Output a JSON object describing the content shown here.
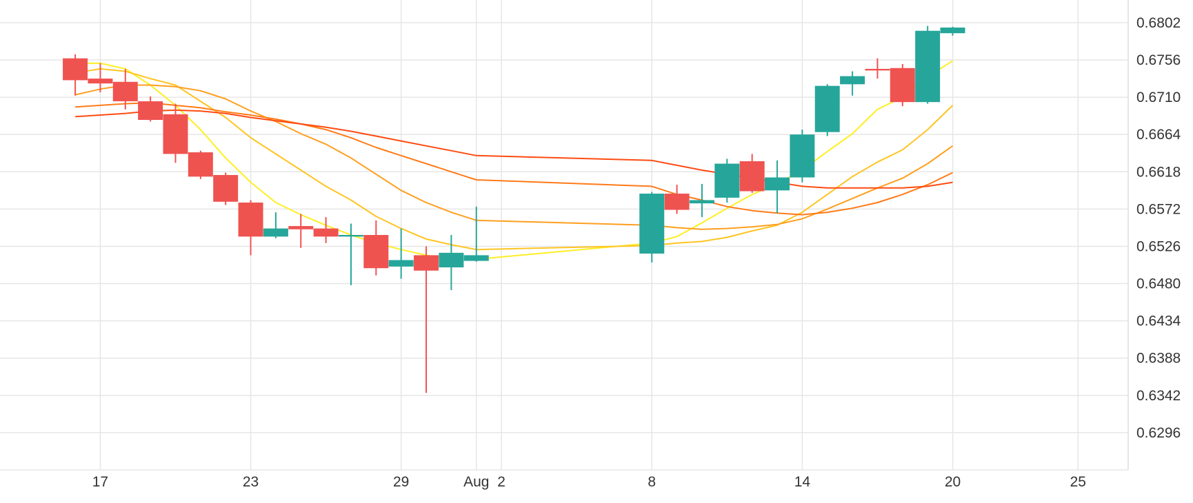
{
  "chart_data": {
    "type": "candlestick",
    "ylim": [
      0.625,
      0.683
    ],
    "y_ticks": [
      "0.6802",
      "0.6756",
      "0.6710",
      "0.6664",
      "0.6618",
      "0.6572",
      "0.6526",
      "0.6480",
      "0.6434",
      "0.6388",
      "0.6342",
      "0.6296"
    ],
    "x_ticks": [
      {
        "label": "17",
        "date": "2019-07-17"
      },
      {
        "label": "23",
        "date": "2019-07-23"
      },
      {
        "label": "29",
        "date": "2019-07-29"
      },
      {
        "label": "Aug",
        "date": "2019-08-01"
      },
      {
        "label": "2",
        "date": "2019-08-02"
      },
      {
        "label": "8",
        "date": "2019-08-08"
      },
      {
        "label": "14",
        "date": "2019-08-14"
      },
      {
        "label": "20",
        "date": "2019-08-20"
      },
      {
        "label": "25",
        "date": "2019-08-25"
      }
    ],
    "x_range": [
      "2019-07-13",
      "2019-08-27"
    ],
    "grid": true,
    "colors": {
      "up": "#26a69a",
      "down": "#ef5350"
    },
    "candles": [
      {
        "date": "2019-07-16",
        "open": 0.6758,
        "high": 0.6763,
        "low": 0.6712,
        "close": 0.6731
      },
      {
        "date": "2019-07-17",
        "open": 0.6733,
        "high": 0.6752,
        "low": 0.6716,
        "close": 0.6727
      },
      {
        "date": "2019-07-18",
        "open": 0.6729,
        "high": 0.6745,
        "low": 0.6695,
        "close": 0.6705
      },
      {
        "date": "2019-07-19",
        "open": 0.6705,
        "high": 0.6711,
        "low": 0.668,
        "close": 0.6682
      },
      {
        "date": "2019-07-20",
        "open": 0.6689,
        "high": 0.6702,
        "low": 0.6629,
        "close": 0.664
      },
      {
        "date": "2019-07-21",
        "open": 0.6642,
        "high": 0.6644,
        "low": 0.6609,
        "close": 0.6612
      },
      {
        "date": "2019-07-22",
        "open": 0.6614,
        "high": 0.6617,
        "low": 0.6577,
        "close": 0.6581
      },
      {
        "date": "2019-07-23",
        "open": 0.658,
        "high": 0.6583,
        "low": 0.6515,
        "close": 0.6538
      },
      {
        "date": "2019-07-24",
        "open": 0.6538,
        "high": 0.6568,
        "low": 0.6536,
        "close": 0.6548
      },
      {
        "date": "2019-07-25",
        "open": 0.6551,
        "high": 0.6566,
        "low": 0.6524,
        "close": 0.6547
      },
      {
        "date": "2019-07-26",
        "open": 0.6548,
        "high": 0.6562,
        "low": 0.653,
        "close": 0.6538
      },
      {
        "date": "2019-07-27",
        "open": 0.6538,
        "high": 0.6554,
        "low": 0.6478,
        "close": 0.654
      },
      {
        "date": "2019-07-28",
        "open": 0.654,
        "high": 0.6558,
        "low": 0.649,
        "close": 0.6499
      },
      {
        "date": "2019-07-29",
        "open": 0.6501,
        "high": 0.6548,
        "low": 0.6486,
        "close": 0.6509
      },
      {
        "date": "2019-07-30",
        "open": 0.6515,
        "high": 0.6526,
        "low": 0.6345,
        "close": 0.6496
      },
      {
        "date": "2019-07-31",
        "open": 0.65,
        "high": 0.654,
        "low": 0.6472,
        "close": 0.6518
      },
      {
        "date": "2019-08-01",
        "open": 0.6508,
        "high": 0.6575,
        "low": 0.6507,
        "close": 0.6515
      },
      {
        "date": "2019-08-08",
        "open": 0.6517,
        "high": 0.6593,
        "low": 0.6506,
        "close": 0.6591
      },
      {
        "date": "2019-08-09",
        "open": 0.6591,
        "high": 0.6602,
        "low": 0.6566,
        "close": 0.6571
      },
      {
        "date": "2019-08-10",
        "open": 0.6579,
        "high": 0.6603,
        "low": 0.6562,
        "close": 0.6583
      },
      {
        "date": "2019-08-11",
        "open": 0.6586,
        "high": 0.6634,
        "low": 0.658,
        "close": 0.6628
      },
      {
        "date": "2019-08-12",
        "open": 0.6631,
        "high": 0.664,
        "low": 0.6592,
        "close": 0.6594
      },
      {
        "date": "2019-08-13",
        "open": 0.6595,
        "high": 0.6632,
        "low": 0.6567,
        "close": 0.6611
      },
      {
        "date": "2019-08-14",
        "open": 0.6611,
        "high": 0.667,
        "low": 0.6605,
        "close": 0.6664
      },
      {
        "date": "2019-08-15",
        "open": 0.6667,
        "high": 0.6726,
        "low": 0.6662,
        "close": 0.6724
      },
      {
        "date": "2019-08-16",
        "open": 0.6726,
        "high": 0.6742,
        "low": 0.6712,
        "close": 0.6736
      },
      {
        "date": "2019-08-17",
        "open": 0.6745,
        "high": 0.6758,
        "low": 0.6733,
        "close": 0.6743
      },
      {
        "date": "2019-08-18",
        "open": 0.6746,
        "high": 0.6751,
        "low": 0.6699,
        "close": 0.6704
      },
      {
        "date": "2019-08-19",
        "open": 0.6704,
        "high": 0.6798,
        "low": 0.6702,
        "close": 0.6792
      },
      {
        "date": "2019-08-20",
        "open": 0.6789,
        "high": 0.6797,
        "low": 0.6786,
        "close": 0.6796
      }
    ],
    "lines": [
      {
        "color": "#ffee22",
        "points": [
          [
            0,
            0.6752
          ],
          [
            1,
            0.6752
          ],
          [
            2,
            0.6745
          ],
          [
            3,
            0.6725
          ],
          [
            4,
            0.67
          ],
          [
            5,
            0.667
          ],
          [
            6,
            0.6635
          ],
          [
            7,
            0.6605
          ],
          [
            8,
            0.658
          ],
          [
            9,
            0.6565
          ],
          [
            10,
            0.6552
          ],
          [
            11,
            0.654
          ],
          [
            12,
            0.653
          ],
          [
            13,
            0.6522
          ],
          [
            14,
            0.6515
          ],
          [
            15,
            0.651
          ],
          [
            16,
            0.651
          ],
          [
            17,
            0.653
          ],
          [
            18,
            0.6538
          ],
          [
            19,
            0.6555
          ],
          [
            20,
            0.6573
          ],
          [
            21,
            0.659
          ],
          [
            22,
            0.6603
          ],
          [
            23,
            0.662
          ],
          [
            24,
            0.6643
          ],
          [
            25,
            0.6665
          ],
          [
            26,
            0.6695
          ],
          [
            27,
            0.671
          ],
          [
            28,
            0.6735
          ],
          [
            29,
            0.6755
          ]
        ]
      },
      {
        "color": "#ffc421",
        "points": [
          [
            0,
            0.674
          ],
          [
            1,
            0.6745
          ],
          [
            2,
            0.6742
          ],
          [
            3,
            0.6733
          ],
          [
            4,
            0.6725
          ],
          [
            5,
            0.6705
          ],
          [
            6,
            0.6685
          ],
          [
            7,
            0.666
          ],
          [
            8,
            0.664
          ],
          [
            9,
            0.662
          ],
          [
            10,
            0.66
          ],
          [
            11,
            0.6583
          ],
          [
            12,
            0.6563
          ],
          [
            13,
            0.6548
          ],
          [
            14,
            0.6535
          ],
          [
            15,
            0.6528
          ],
          [
            16,
            0.6522
          ],
          [
            17,
            0.6527
          ],
          [
            18,
            0.653
          ],
          [
            19,
            0.6532
          ],
          [
            20,
            0.6537
          ],
          [
            21,
            0.6545
          ],
          [
            22,
            0.6552
          ],
          [
            23,
            0.6568
          ],
          [
            24,
            0.659
          ],
          [
            25,
            0.6612
          ],
          [
            26,
            0.663
          ],
          [
            27,
            0.6645
          ],
          [
            28,
            0.667
          ],
          [
            29,
            0.67
          ]
        ]
      },
      {
        "color": "#ff9e1e",
        "points": [
          [
            0,
            0.6713
          ],
          [
            1,
            0.672
          ],
          [
            2,
            0.6725
          ],
          [
            3,
            0.6725
          ],
          [
            4,
            0.6723
          ],
          [
            5,
            0.6718
          ],
          [
            6,
            0.6708
          ],
          [
            7,
            0.6693
          ],
          [
            8,
            0.668
          ],
          [
            9,
            0.6665
          ],
          [
            10,
            0.6652
          ],
          [
            11,
            0.6635
          ],
          [
            12,
            0.6615
          ],
          [
            13,
            0.6595
          ],
          [
            14,
            0.658
          ],
          [
            15,
            0.6568
          ],
          [
            16,
            0.6558
          ],
          [
            17,
            0.6552
          ],
          [
            18,
            0.6549
          ],
          [
            19,
            0.6547
          ],
          [
            20,
            0.6548
          ],
          [
            21,
            0.655
          ],
          [
            22,
            0.6553
          ],
          [
            23,
            0.656
          ],
          [
            24,
            0.6572
          ],
          [
            25,
            0.6585
          ],
          [
            26,
            0.6598
          ],
          [
            27,
            0.661
          ],
          [
            28,
            0.6628
          ],
          [
            29,
            0.665
          ]
        ]
      },
      {
        "color": "#ff7a18",
        "points": [
          [
            0,
            0.6698
          ],
          [
            1,
            0.67
          ],
          [
            2,
            0.6702
          ],
          [
            3,
            0.6703
          ],
          [
            4,
            0.67
          ],
          [
            5,
            0.6697
          ],
          [
            6,
            0.6692
          ],
          [
            7,
            0.6688
          ],
          [
            8,
            0.6683
          ],
          [
            9,
            0.6677
          ],
          [
            10,
            0.667
          ],
          [
            11,
            0.666
          ],
          [
            12,
            0.6648
          ],
          [
            13,
            0.6638
          ],
          [
            14,
            0.6628
          ],
          [
            15,
            0.6618
          ],
          [
            16,
            0.6608
          ],
          [
            17,
            0.66
          ],
          [
            18,
            0.659
          ],
          [
            19,
            0.6583
          ],
          [
            20,
            0.6575
          ],
          [
            21,
            0.657
          ],
          [
            22,
            0.6567
          ],
          [
            23,
            0.6565
          ],
          [
            24,
            0.6568
          ],
          [
            25,
            0.6573
          ],
          [
            26,
            0.658
          ],
          [
            27,
            0.659
          ],
          [
            28,
            0.6602
          ],
          [
            29,
            0.6617
          ]
        ]
      },
      {
        "color": "#ff4a11",
        "points": [
          [
            0,
            0.6686
          ],
          [
            1,
            0.6688
          ],
          [
            2,
            0.669
          ],
          [
            3,
            0.6693
          ],
          [
            4,
            0.6694
          ],
          [
            5,
            0.6693
          ],
          [
            6,
            0.669
          ],
          [
            7,
            0.6685
          ],
          [
            8,
            0.6681
          ],
          [
            9,
            0.6677
          ],
          [
            10,
            0.6673
          ],
          [
            11,
            0.6668
          ],
          [
            12,
            0.6662
          ],
          [
            13,
            0.6656
          ],
          [
            14,
            0.665
          ],
          [
            15,
            0.6644
          ],
          [
            16,
            0.6638
          ],
          [
            17,
            0.6632
          ],
          [
            18,
            0.6626
          ],
          [
            19,
            0.662
          ],
          [
            20,
            0.6615
          ],
          [
            21,
            0.661
          ],
          [
            22,
            0.6605
          ],
          [
            23,
            0.66
          ],
          [
            24,
            0.6598
          ],
          [
            25,
            0.6598
          ],
          [
            26,
            0.6598
          ],
          [
            27,
            0.6598
          ],
          [
            28,
            0.66
          ],
          [
            29,
            0.6605
          ]
        ]
      }
    ]
  }
}
